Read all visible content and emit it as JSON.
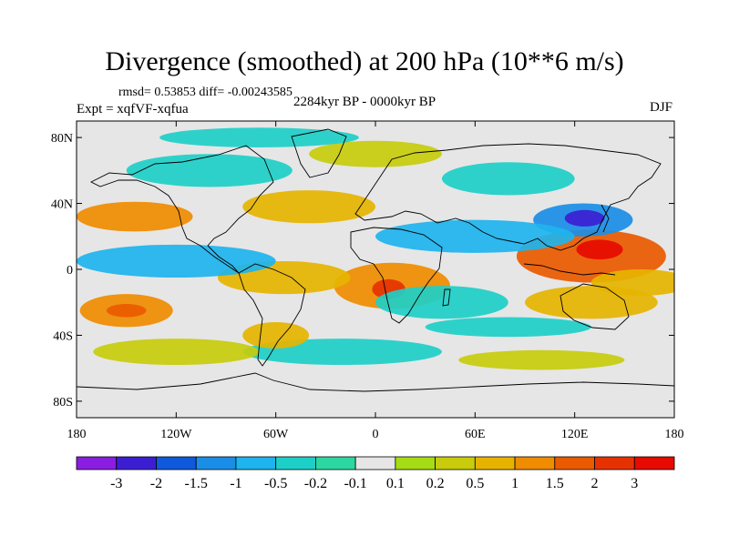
{
  "chart_data": {
    "type": "heatmap",
    "title": "Divergence (smoothed) at 200 hPa (10**6 m/s)",
    "rmsd_text": "rmsd= 0.53853 diff= -0.00243585",
    "experiment": "Expt = xqfVF-xqfua",
    "period": "2284kyr BP - 0000kyr BP",
    "season": "DJF",
    "x_axis": {
      "range": [
        -180,
        180
      ],
      "ticks": [
        -180,
        -120,
        -60,
        0,
        60,
        120,
        180
      ],
      "tick_labels": [
        "180",
        "120W",
        "60W",
        "0",
        "60E",
        "120E",
        "180"
      ]
    },
    "y_axis": {
      "range": [
        -90,
        90
      ],
      "ticks": [
        80,
        40,
        0,
        -40,
        -80
      ],
      "tick_labels": [
        "80N",
        "40N",
        "0",
        "40S",
        "80S"
      ]
    },
    "levels": [
      "-3",
      "-2",
      "-1.5",
      "-1",
      "-0.5",
      "-0.2",
      "-0.1",
      "0.1",
      "0.2",
      "0.5",
      "1",
      "1.5",
      "2",
      "3"
    ],
    "colors": [
      "#8a1ee0",
      "#3c1ed2",
      "#0f5adc",
      "#1a8ee6",
      "#1eb4ee",
      "#1ecfc8",
      "#2cd8a0",
      "#e6e6e6",
      "#a6dc14",
      "#c8cc0c",
      "#e6b400",
      "#f08c00",
      "#ea5a00",
      "#e63200",
      "#e60a00"
    ],
    "anomaly_regions": [
      {
        "lon": 130,
        "lat": 8,
        "rx": 45,
        "ry": 16,
        "value": 1.5
      },
      {
        "lon": 135,
        "lat": 12,
        "rx": 14,
        "ry": 6,
        "value": 3
      },
      {
        "lon": 125,
        "lat": 30,
        "rx": 30,
        "ry": 10,
        "value": -1.5
      },
      {
        "lon": 126,
        "lat": 31,
        "rx": 12,
        "ry": 5,
        "value": -3
      },
      {
        "lon": 10,
        "lat": -10,
        "rx": 35,
        "ry": 14,
        "value": 1
      },
      {
        "lon": 8,
        "lat": -12,
        "rx": 10,
        "ry": 6,
        "value": 2
      },
      {
        "lon": -55,
        "lat": -5,
        "rx": 40,
        "ry": 10,
        "value": 0.5
      },
      {
        "lon": -150,
        "lat": -25,
        "rx": 28,
        "ry": 10,
        "value": 1
      },
      {
        "lon": -150,
        "lat": -25,
        "rx": 12,
        "ry": 4,
        "value": 1.5
      },
      {
        "lon": -145,
        "lat": 32,
        "rx": 35,
        "ry": 9,
        "value": 1
      },
      {
        "lon": -40,
        "lat": 38,
        "rx": 40,
        "ry": 10,
        "value": 0.5
      },
      {
        "lon": 60,
        "lat": 20,
        "rx": 60,
        "ry": 10,
        "value": -1
      },
      {
        "lon": -120,
        "lat": 5,
        "rx": 60,
        "ry": 10,
        "value": -1
      },
      {
        "lon": 40,
        "lat": -20,
        "rx": 40,
        "ry": 10,
        "value": -0.5
      },
      {
        "lon": 130,
        "lat": -20,
        "rx": 40,
        "ry": 10,
        "value": 0.5
      },
      {
        "lon": -100,
        "lat": 60,
        "rx": 50,
        "ry": 10,
        "value": -0.5
      },
      {
        "lon": 0,
        "lat": 70,
        "rx": 40,
        "ry": 8,
        "value": 0.2
      },
      {
        "lon": 80,
        "lat": 55,
        "rx": 40,
        "ry": 10,
        "value": -0.5
      },
      {
        "lon": -20,
        "lat": -50,
        "rx": 60,
        "ry": 8,
        "value": -0.5
      },
      {
        "lon": 100,
        "lat": -55,
        "rx": 50,
        "ry": 6,
        "value": 0.2
      },
      {
        "lon": -120,
        "lat": -50,
        "rx": 50,
        "ry": 8,
        "value": 0.2
      },
      {
        "lon": -60,
        "lat": -40,
        "rx": 20,
        "ry": 8,
        "value": 0.5
      },
      {
        "lon": 80,
        "lat": -35,
        "rx": 50,
        "ry": 6,
        "value": -0.5
      },
      {
        "lon": 160,
        "lat": -8,
        "rx": 30,
        "ry": 8,
        "value": 0.5
      },
      {
        "lon": -70,
        "lat": 80,
        "rx": 60,
        "ry": 6,
        "value": -0.5
      }
    ]
  }
}
